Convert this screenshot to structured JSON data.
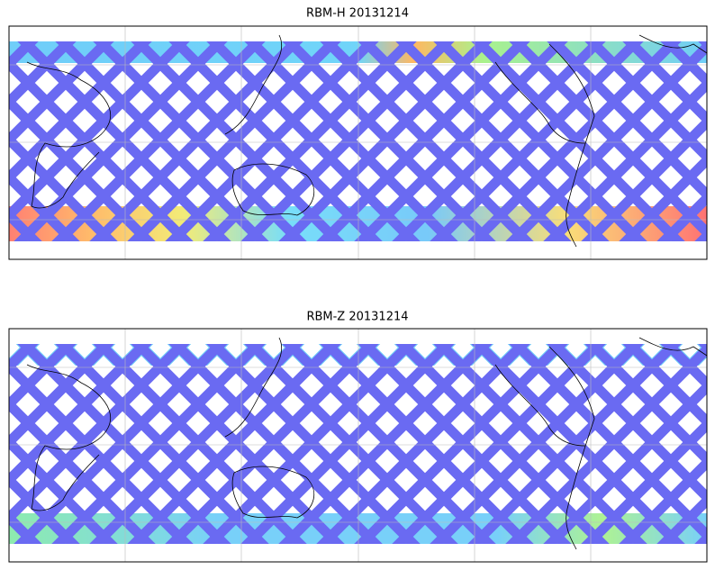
{
  "panels": [
    {
      "title": "RBM-H 20131214"
    },
    {
      "title": "RBM-Z 20131214"
    }
  ]
}
